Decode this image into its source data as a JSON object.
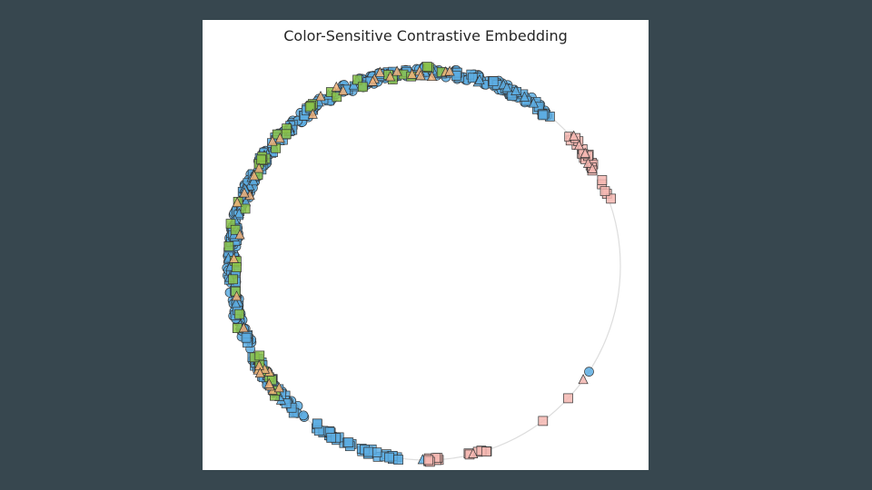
{
  "chart_data": {
    "type": "scatter",
    "title": "Color-Sensitive Contrastive Embedding",
    "xlabel": "",
    "ylabel": "",
    "axes_visible": false,
    "grid": false,
    "legend": "none",
    "xlim": [
      -1.08,
      1.08
    ],
    "ylim": [
      -1.08,
      1.08
    ],
    "unit_circle": {
      "shown": true,
      "color": "#dddddd"
    },
    "colors": {
      "blue": "#5dade2",
      "green": "#8bc34a",
      "orange": "#f0b27a",
      "pink": "#f5b7b1",
      "edge": "#333333"
    },
    "series": [
      {
        "marker": "circle",
        "color_key": "blue",
        "arcs": [
          {
            "from_deg": 50,
            "to_deg": 232,
            "count": 260,
            "radius_jitter": 0.025
          }
        ],
        "points": [
          {
            "angle_deg": -33,
            "r": 1.0
          }
        ]
      },
      {
        "marker": "square",
        "color_key": "blue",
        "arcs": [
          {
            "from_deg": 50,
            "to_deg": 230,
            "count": 150,
            "radius_jitter": 0.02
          },
          {
            "from_deg": 235,
            "to_deg": 262,
            "count": 40,
            "radius_jitter": 0.015
          }
        ],
        "points": []
      },
      {
        "marker": "triangle",
        "color_key": "blue",
        "arcs": [
          {
            "from_deg": 55,
            "to_deg": 228,
            "count": 60,
            "radius_jitter": 0.02
          }
        ],
        "points": [
          {
            "angle_deg": 269,
            "r": 1.0
          }
        ]
      },
      {
        "marker": "square",
        "color_key": "green",
        "arcs": [
          {
            "from_deg": 85,
            "to_deg": 225,
            "count": 45,
            "radius_jitter": 0.03
          }
        ],
        "points": []
      },
      {
        "marker": "triangle",
        "color_key": "orange",
        "arcs": [
          {
            "from_deg": 80,
            "to_deg": 225,
            "count": 35,
            "radius_jitter": 0.03
          }
        ],
        "points": []
      },
      {
        "marker": "square",
        "color_key": "pink",
        "arcs": [
          {
            "from_deg": 18,
            "to_deg": 44,
            "count": 22,
            "radius_jitter": 0.015
          },
          {
            "from_deg": 270,
            "to_deg": 290,
            "count": 18,
            "radius_jitter": 0.01
          }
        ],
        "points": [
          {
            "angle_deg": 307,
            "r": 1.0
          },
          {
            "angle_deg": 317,
            "r": 1.0
          }
        ]
      },
      {
        "marker": "triangle",
        "color_key": "pink",
        "arcs": [
          {
            "from_deg": 30,
            "to_deg": 42,
            "count": 6,
            "radius_jitter": 0.015
          }
        ],
        "points": [
          {
            "angle_deg": 324,
            "r": 1.0
          },
          {
            "angle_deg": 284,
            "r": 1.0
          }
        ]
      }
    ]
  }
}
